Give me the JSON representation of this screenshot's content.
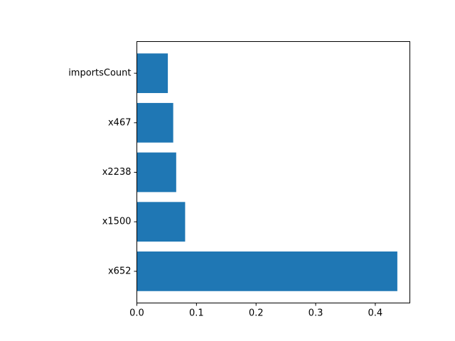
{
  "chart_data": {
    "type": "bar",
    "orientation": "horizontal",
    "categories": [
      "x652",
      "x1500",
      "x2238",
      "x467",
      "importsCount"
    ],
    "values": [
      0.437,
      0.081,
      0.066,
      0.061,
      0.052
    ],
    "xlim": [
      0,
      0.458
    ],
    "xticks": [
      0.0,
      0.1,
      0.2,
      0.3,
      0.4
    ],
    "xtick_labels": [
      "0.0",
      "0.1",
      "0.2",
      "0.3",
      "0.4"
    ],
    "title": "",
    "xlabel": "",
    "ylabel": "",
    "grid": false,
    "bar_color": "#1f77b4"
  }
}
